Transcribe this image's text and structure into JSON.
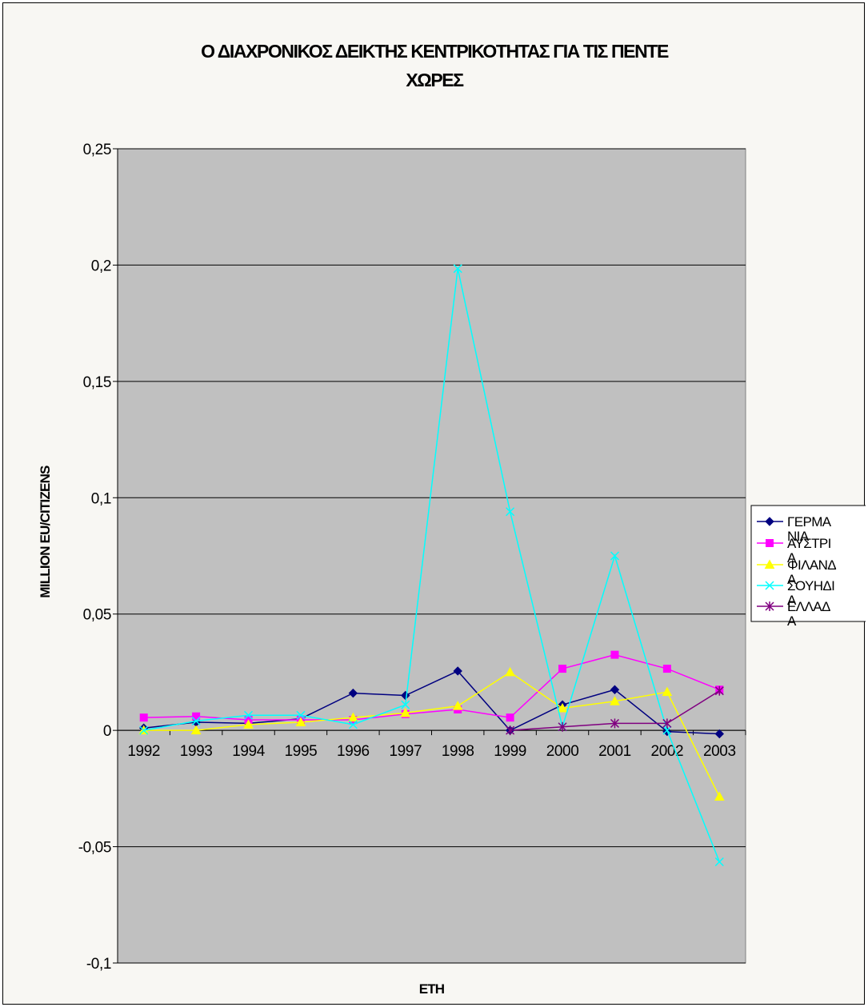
{
  "chart_data": {
    "type": "line",
    "title": [
      "Ο ΔΙΑΧΡΟΝΙΚΟΣ ΔΕΙΚΤΗΣ ΚΕΝΤΡΙΚΟΤΗΤΑΣ ΓΙΑ ΤΙΣ ΠΕΝΤΕ",
      "ΧΩΡΕΣ"
    ],
    "xlabel": "ΕΤΗ",
    "ylabel": "MILLION EU/CITIZENS",
    "ylim": [
      -0.1,
      0.25
    ],
    "yticks": [
      0.25,
      0.2,
      0.15,
      0.1,
      0.05,
      0,
      -0.05,
      -0.1
    ],
    "ytick_labels": [
      "0,25",
      "0,2",
      "0,15",
      "0,1",
      "0,05",
      "0",
      "-0,05",
      "-0,1"
    ],
    "categories": [
      "1992",
      "1993",
      "1994",
      "1995",
      "1996",
      "1997",
      "1998",
      "1999",
      "2000",
      "2001",
      "2002",
      "2003"
    ],
    "grid": "horizontal",
    "plot_background": "#c0c0c0",
    "legend_position": "right",
    "series": [
      {
        "name": [
          "ΓΕΡΜΑ",
          "ΝΙΑ"
        ],
        "color": "#000080",
        "marker": "diamond",
        "values": [
          0.001,
          0.0035,
          0.003,
          0.005,
          0.016,
          0.015,
          0.0255,
          0.0,
          0.011,
          0.0175,
          -0.0005,
          -0.0015
        ]
      },
      {
        "name": [
          "ΑΥΣΤΡΙ",
          "Α"
        ],
        "color": "#ff00ff",
        "marker": "square",
        "values": [
          0.0055,
          0.006,
          0.0045,
          0.0045,
          0.0045,
          0.007,
          0.009,
          0.0055,
          0.0265,
          0.0325,
          0.0265,
          0.0175
        ]
      },
      {
        "name": [
          "ΦΙΛΑΝΔ",
          "Α"
        ],
        "color": "#ffff00",
        "marker": "triangle",
        "values": [
          0.0,
          0.0,
          0.0025,
          0.0035,
          0.0055,
          0.0075,
          0.0105,
          0.025,
          0.0095,
          0.0125,
          0.0165,
          -0.0285
        ]
      },
      {
        "name": [
          "ΣΟΥΗΔΙ",
          "Α"
        ],
        "color": "#00ffff",
        "marker": "x",
        "values": [
          0.0,
          0.004,
          0.0065,
          0.0065,
          0.0025,
          0.011,
          0.1985,
          0.094,
          0.0015,
          0.075,
          0.0,
          -0.0565
        ]
      },
      {
        "name": [
          "ΕΛΛΑΔ",
          "Α"
        ],
        "color": "#800080",
        "marker": "star",
        "values": [
          null,
          null,
          null,
          null,
          null,
          null,
          null,
          0.0,
          0.0015,
          0.003,
          0.003,
          0.017
        ]
      }
    ]
  }
}
